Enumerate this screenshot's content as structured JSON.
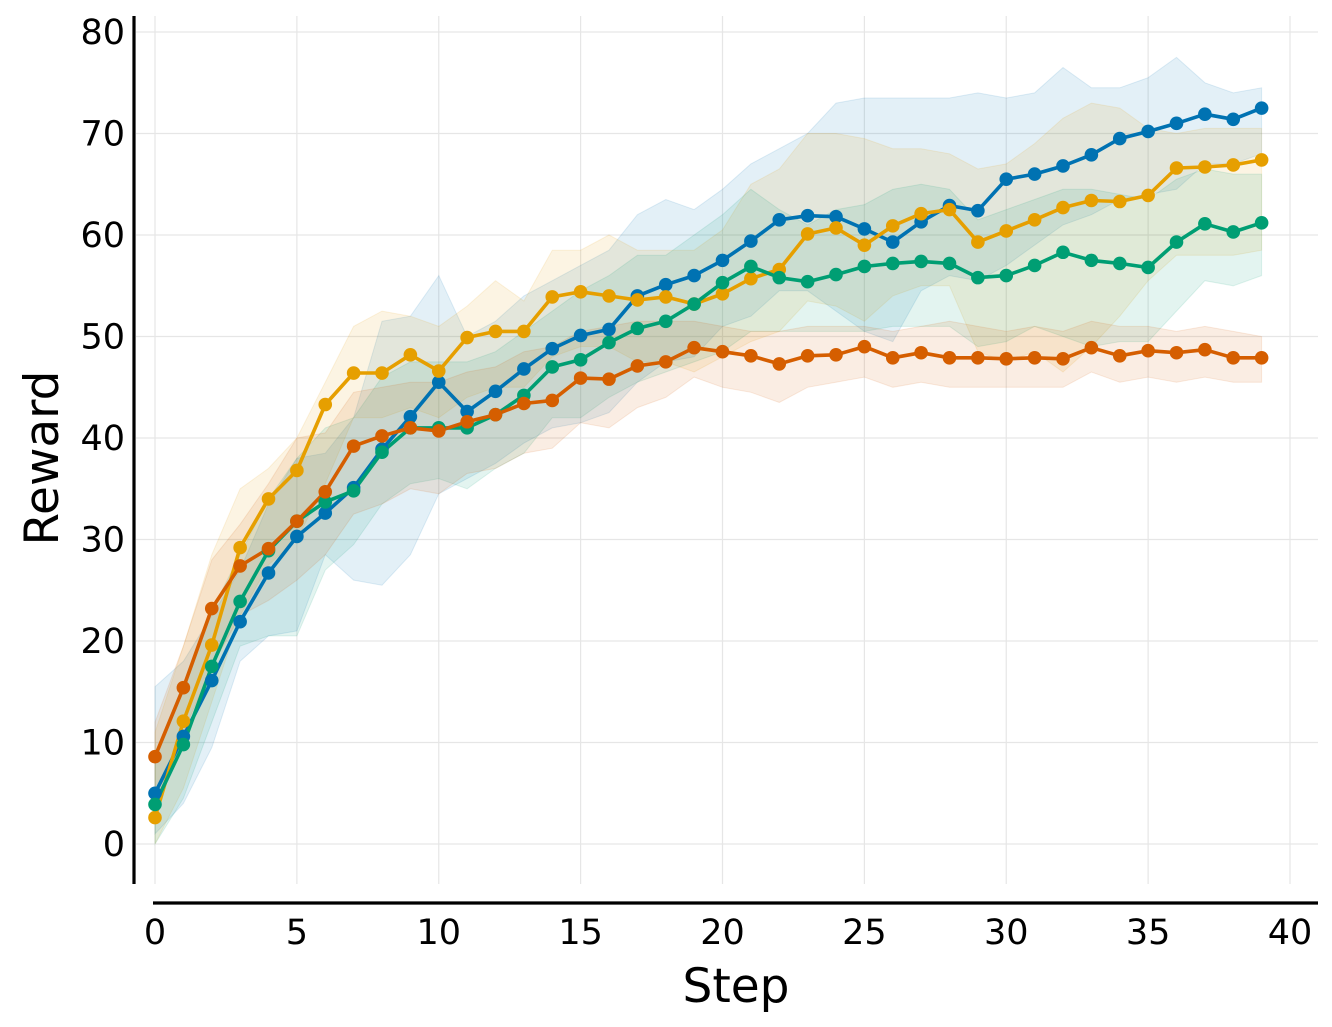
{
  "chart_data": {
    "type": "line",
    "title": "",
    "xlabel": "Step",
    "ylabel": "Reward",
    "xlim": [
      0,
      40
    ],
    "ylim": [
      -4,
      81
    ],
    "xticks": [
      0,
      5,
      10,
      15,
      20,
      25,
      30,
      35,
      40
    ],
    "yticks": [
      0,
      10,
      20,
      30,
      40,
      50,
      60,
      70,
      80
    ],
    "grid": true,
    "legend": "none",
    "x": [
      0,
      1,
      2,
      3,
      4,
      5,
      6,
      7,
      8,
      9,
      10,
      11,
      12,
      13,
      14,
      15,
      16,
      17,
      18,
      19,
      20,
      21,
      22,
      23,
      24,
      25,
      26,
      27,
      28,
      29,
      30,
      31,
      32,
      33,
      34,
      35,
      36,
      37,
      38,
      39
    ],
    "series": [
      {
        "name": "blue",
        "color": "#0072B2",
        "values": [
          5.0,
          10.6,
          16.1,
          21.9,
          26.7,
          30.3,
          32.6,
          35.1,
          38.9,
          42.1,
          45.5,
          42.6,
          44.6,
          46.8,
          48.8,
          50.1,
          50.7,
          54.0,
          55.1,
          56.0,
          57.5,
          59.4,
          61.5,
          61.9,
          61.8,
          60.6,
          59.3,
          61.3,
          62.9,
          62.4,
          65.5,
          66.0,
          66.8,
          67.9,
          69.5,
          70.2,
          71.0,
          71.9,
          71.4,
          72.5
        ],
        "upper": [
          15.5,
          18.0,
          22.5,
          27.0,
          33.5,
          38.0,
          38.5,
          42.0,
          51.5,
          52.0,
          56.0,
          50.0,
          51.5,
          54.0,
          55.5,
          57.0,
          58.5,
          62.0,
          63.5,
          62.5,
          64.5,
          67.0,
          68.5,
          70.0,
          73.0,
          73.5,
          73.5,
          73.5,
          73.5,
          74.0,
          73.5,
          74.0,
          76.5,
          74.5,
          74.5,
          75.5,
          77.5,
          75.0,
          74.0,
          74.5
        ],
        "lower": [
          1.0,
          4.0,
          9.5,
          18.0,
          20.5,
          21.0,
          28.5,
          26.0,
          25.5,
          28.5,
          34.5,
          36.0,
          37.5,
          39.5,
          41.0,
          41.5,
          42.5,
          45.5,
          47.5,
          48.0,
          51.0,
          52.0,
          54.5,
          54.5,
          52.5,
          50.5,
          49.5,
          54.5,
          56.0,
          55.5,
          57.0,
          59.0,
          61.0,
          62.0,
          63.5,
          64.0,
          64.5,
          67.0,
          67.0,
          68.0
        ]
      },
      {
        "name": "orange",
        "color": "#E69F00",
        "values": [
          2.6,
          12.1,
          19.6,
          29.2,
          34.0,
          36.8,
          43.3,
          46.4,
          46.4,
          48.2,
          46.6,
          49.9,
          50.5,
          50.5,
          53.9,
          54.4,
          54.0,
          53.6,
          53.9,
          53.2,
          54.2,
          55.7,
          56.6,
          60.1,
          60.7,
          59.0,
          60.9,
          62.1,
          62.5,
          59.3,
          60.4,
          61.5,
          62.7,
          63.4,
          63.3,
          63.9,
          66.6,
          66.7,
          66.9,
          67.4
        ],
        "upper": [
          11.0,
          19.5,
          28.5,
          35.0,
          37.0,
          40.0,
          45.5,
          51.0,
          52.5,
          52.0,
          51.0,
          53.0,
          55.5,
          53.5,
          58.5,
          58.5,
          60.0,
          58.5,
          58.5,
          58.5,
          60.5,
          65.0,
          66.5,
          70.0,
          70.0,
          69.5,
          68.5,
          68.5,
          68.0,
          66.5,
          67.0,
          69.0,
          71.5,
          73.0,
          72.5,
          70.5,
          70.0,
          70.5,
          70.5,
          70.5
        ],
        "lower": [
          0.0,
          5.5,
          14.0,
          22.5,
          27.5,
          30.0,
          35.5,
          42.0,
          42.0,
          43.0,
          42.0,
          44.0,
          45.0,
          45.0,
          48.0,
          49.0,
          49.0,
          47.5,
          47.5,
          46.5,
          48.0,
          49.5,
          50.5,
          53.5,
          53.0,
          51.5,
          54.0,
          55.0,
          55.0,
          48.5,
          47.5,
          48.5,
          46.5,
          49.0,
          52.0,
          55.5,
          58.0,
          58.0,
          58.0,
          58.5
        ]
      },
      {
        "name": "green",
        "color": "#009E73",
        "values": [
          3.9,
          9.8,
          17.5,
          23.9,
          28.9,
          31.8,
          33.7,
          34.8,
          38.6,
          41.0,
          41.0,
          41.0,
          42.3,
          44.2,
          47.0,
          47.7,
          49.4,
          50.8,
          51.5,
          53.2,
          55.3,
          56.9,
          55.8,
          55.4,
          56.1,
          56.9,
          57.2,
          57.4,
          57.2,
          55.8,
          56.0,
          57.0,
          58.3,
          57.5,
          57.2,
          56.8,
          59.3,
          61.1,
          60.3,
          61.2
        ],
        "upper": [
          9.0,
          15.0,
          23.0,
          28.5,
          34.0,
          38.0,
          41.0,
          42.0,
          46.0,
          47.5,
          47.5,
          47.5,
          48.5,
          50.5,
          52.5,
          54.5,
          56.0,
          58.0,
          58.0,
          60.0,
          62.0,
          64.5,
          62.5,
          61.0,
          62.5,
          63.0,
          64.5,
          65.0,
          64.5,
          61.5,
          62.5,
          63.5,
          64.5,
          64.5,
          64.0,
          63.5,
          65.5,
          66.5,
          66.0,
          66.0
        ],
        "lower": [
          0.0,
          4.5,
          12.0,
          19.5,
          20.5,
          20.5,
          27.0,
          29.5,
          33.5,
          35.5,
          36.0,
          35.0,
          37.0,
          38.5,
          42.0,
          42.0,
          44.0,
          45.5,
          46.5,
          47.5,
          48.5,
          50.5,
          50.5,
          50.5,
          50.5,
          50.5,
          51.0,
          51.0,
          51.0,
          49.0,
          49.5,
          51.0,
          50.0,
          49.0,
          49.5,
          49.5,
          52.5,
          55.5,
          55.0,
          56.0
        ]
      },
      {
        "name": "red",
        "color": "#D55E00",
        "values": [
          8.6,
          15.4,
          23.2,
          27.4,
          29.1,
          31.8,
          34.7,
          39.2,
          40.2,
          41.0,
          40.7,
          41.6,
          42.3,
          43.4,
          43.7,
          45.9,
          45.8,
          47.1,
          47.5,
          48.9,
          48.5,
          48.1,
          47.3,
          48.1,
          48.2,
          49.0,
          47.9,
          48.4,
          47.9,
          47.9,
          47.8,
          47.9,
          47.8,
          48.9,
          48.1,
          48.6,
          48.4,
          48.7,
          47.9,
          47.9
        ],
        "upper": [
          12.0,
          19.5,
          28.0,
          31.5,
          35.5,
          40.0,
          40.5,
          44.5,
          45.0,
          45.5,
          45.5,
          46.5,
          47.0,
          48.5,
          49.0,
          50.5,
          51.0,
          51.5,
          51.5,
          51.5,
          51.0,
          50.5,
          50.5,
          51.0,
          51.0,
          51.0,
          50.5,
          51.0,
          51.5,
          51.0,
          50.5,
          51.0,
          50.5,
          51.5,
          51.0,
          51.0,
          50.5,
          51.0,
          50.5,
          50.0
        ],
        "lower": [
          4.0,
          11.0,
          17.5,
          22.5,
          24.0,
          26.0,
          28.5,
          32.5,
          33.5,
          35.0,
          34.5,
          36.5,
          37.0,
          38.5,
          39.0,
          41.5,
          41.0,
          43.0,
          44.0,
          46.0,
          45.0,
          44.5,
          43.5,
          45.0,
          45.5,
          46.0,
          45.0,
          45.5,
          45.0,
          45.0,
          45.0,
          45.0,
          45.0,
          46.5,
          45.5,
          46.0,
          45.5,
          46.0,
          45.5,
          45.5
        ]
      }
    ]
  }
}
